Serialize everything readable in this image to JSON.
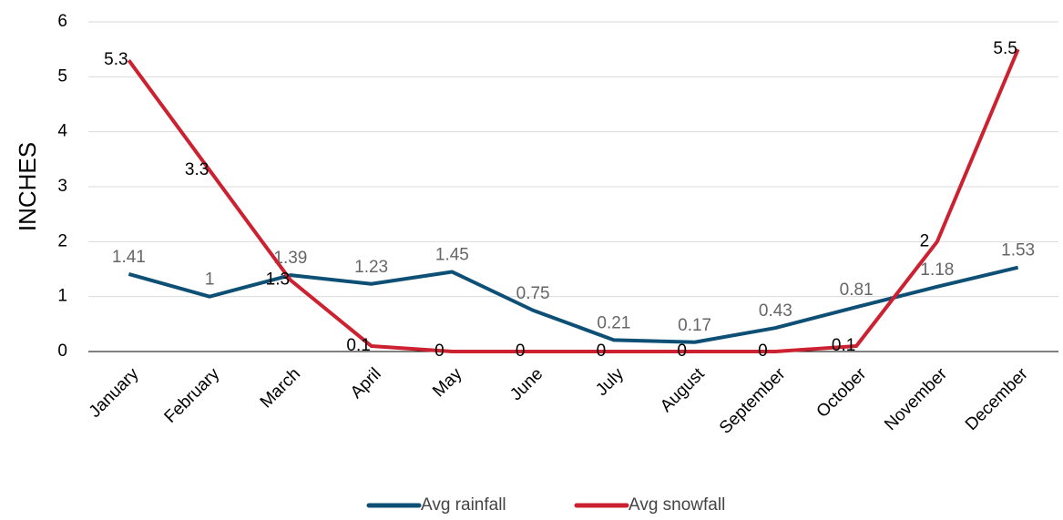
{
  "chart_data": {
    "type": "line",
    "y_label": "INCHES",
    "categories": [
      "January",
      "February",
      "March",
      "April",
      "May",
      "June",
      "July",
      "August",
      "September",
      "October",
      "November",
      "December"
    ],
    "series": [
      {
        "name": "Avg rainfall",
        "color": "#0d4f75",
        "values": [
          1.41,
          1,
          1.39,
          1.23,
          1.45,
          0.75,
          0.21,
          0.17,
          0.43,
          0.81,
          1.18,
          1.53
        ]
      },
      {
        "name": "Avg snowfall",
        "color": "#cc2131",
        "values": [
          5.3,
          3.3,
          1.3,
          0.1,
          0,
          0,
          0,
          0,
          0,
          0.1,
          2,
          5.5
        ]
      }
    ],
    "ylim": [
      0,
      6
    ],
    "yticks": [
      0,
      1,
      2,
      3,
      4,
      5,
      6
    ],
    "grid": true,
    "legend": "bottom"
  }
}
